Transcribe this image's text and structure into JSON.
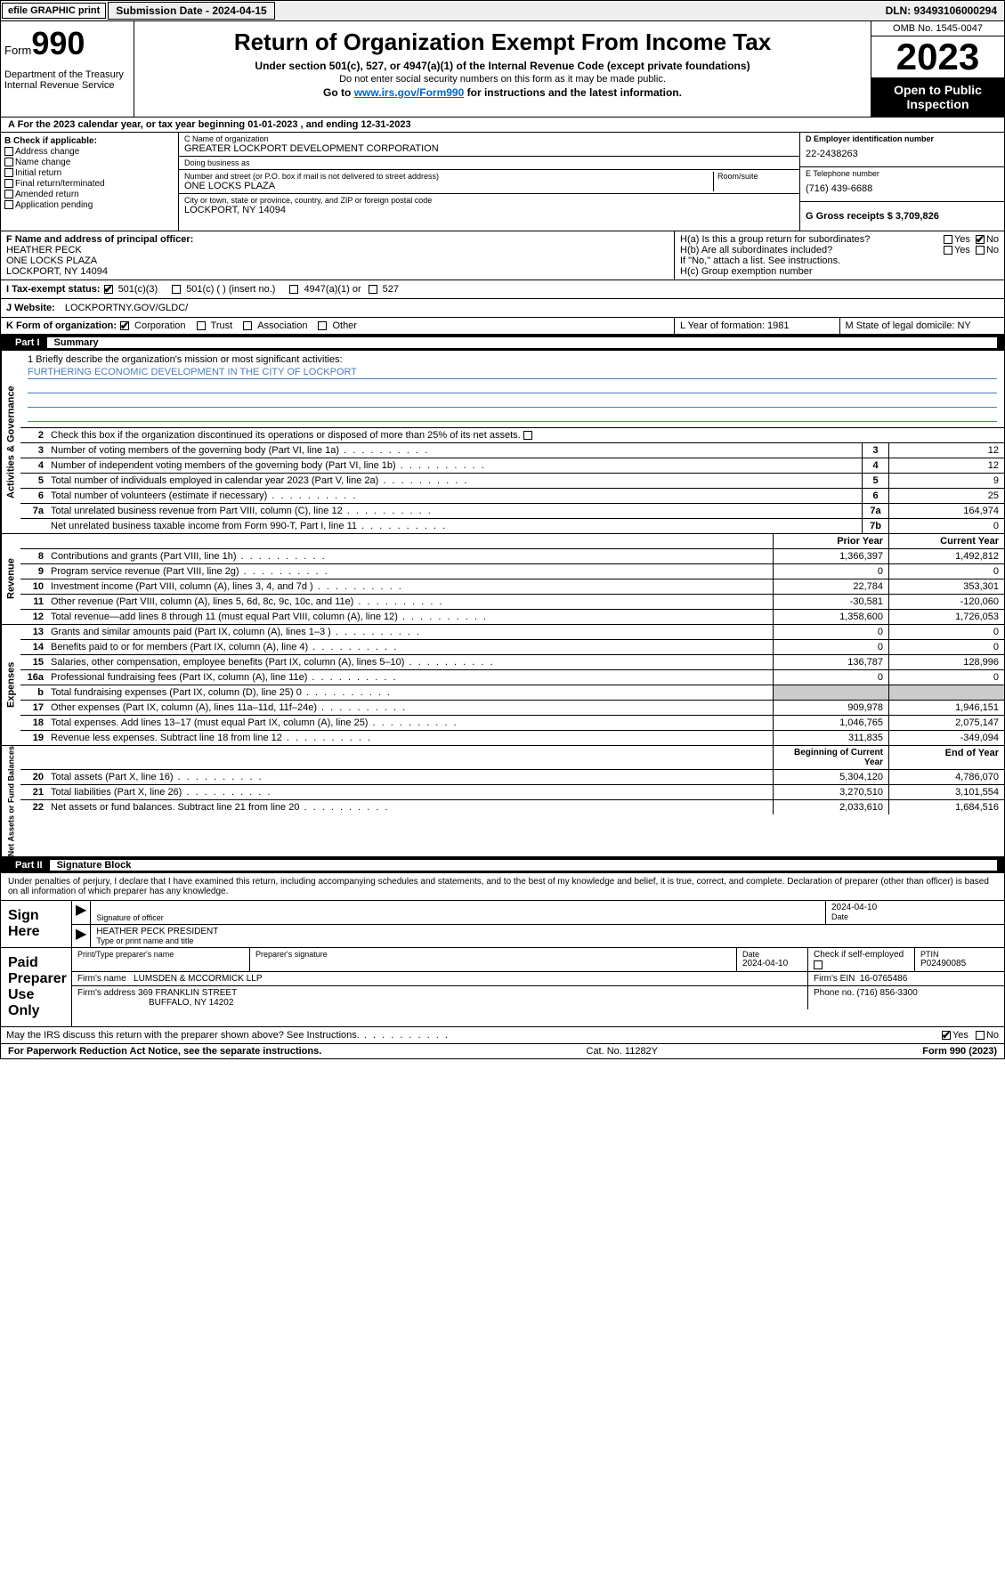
{
  "topbar": {
    "efile": "efile GRAPHIC print",
    "submission": "Submission Date - 2024-04-15",
    "dln": "DLN: 93493106000294"
  },
  "header": {
    "form_label": "Form",
    "form_num": "990",
    "dept": "Department of the Treasury Internal Revenue Service",
    "title": "Return of Organization Exempt From Income Tax",
    "sub1": "Under section 501(c), 527, or 4947(a)(1) of the Internal Revenue Code (except private foundations)",
    "sub2": "Do not enter social security numbers on this form as it may be made public.",
    "sub3_pre": "Go to ",
    "sub3_link": "www.irs.gov/Form990",
    "sub3_post": " for instructions and the latest information.",
    "omb": "OMB No. 1545-0047",
    "year": "2023",
    "open": "Open to Public Inspection"
  },
  "rowA": "A For the 2023 calendar year, or tax year beginning 01-01-2023   , and ending 12-31-2023",
  "colB": {
    "header": "B Check if applicable:",
    "opts": [
      "Address change",
      "Name change",
      "Initial return",
      "Final return/terminated",
      "Amended return",
      "Application pending"
    ]
  },
  "colC": {
    "name_lbl": "C Name of organization",
    "name": "GREATER LOCKPORT DEVELOPMENT CORPORATION",
    "dba_lbl": "Doing business as",
    "dba": "",
    "addr_lbl": "Number and street (or P.O. box if mail is not delivered to street address)",
    "room_lbl": "Room/suite",
    "addr": "ONE LOCKS PLAZA",
    "city_lbl": "City or town, state or province, country, and ZIP or foreign postal code",
    "city": "LOCKPORT, NY  14094"
  },
  "colD": {
    "ein_lbl": "D Employer identification number",
    "ein": "22-2438263",
    "tel_lbl": "E Telephone number",
    "tel": "(716) 439-6688",
    "gross_lbl": "G Gross receipts $ 3,709,826"
  },
  "rowF": {
    "lbl": "F  Name and address of principal officer:",
    "name": "HEATHER PECK",
    "addr1": "ONE LOCKS PLAZA",
    "addr2": "LOCKPORT, NY  14094"
  },
  "rowH": {
    "a": "H(a)  Is this a group return for subordinates?",
    "b": "H(b)  Are all subordinates included?",
    "b_note": "If \"No,\" attach a list. See instructions.",
    "c": "H(c)  Group exemption number",
    "yes": "Yes",
    "no": "No"
  },
  "taxI": {
    "lbl": "I  Tax-exempt status:",
    "o1": "501(c)(3)",
    "o2": "501(c) (  ) (insert no.)",
    "o3": "4947(a)(1) or",
    "o4": "527"
  },
  "rowJ": {
    "lbl": "J  Website:",
    "val": "LOCKPORTNY.GOV/GLDC/"
  },
  "rowK": {
    "lbl": "K Form of organization:",
    "opts": [
      "Corporation",
      "Trust",
      "Association",
      "Other"
    ],
    "l": "L Year of formation: 1981",
    "m": "M State of legal domicile: NY"
  },
  "part1": {
    "num": "Part I",
    "title": "Summary"
  },
  "mission": {
    "line1_lbl": "1  Briefly describe the organization's mission or most significant activities:",
    "text": "FURTHERING ECONOMIC DEVELOPMENT IN THE CITY OF LOCKPORT"
  },
  "gov": {
    "tab": "Activities & Governance",
    "l2": "Check this box       if the organization discontinued its operations or disposed of more than 25% of its net assets.",
    "rows": [
      {
        "n": "3",
        "t": "Number of voting members of the governing body (Part VI, line 1a)",
        "b": "3",
        "v": "12"
      },
      {
        "n": "4",
        "t": "Number of independent voting members of the governing body (Part VI, line 1b)",
        "b": "4",
        "v": "12"
      },
      {
        "n": "5",
        "t": "Total number of individuals employed in calendar year 2023 (Part V, line 2a)",
        "b": "5",
        "v": "9"
      },
      {
        "n": "6",
        "t": "Total number of volunteers (estimate if necessary)",
        "b": "6",
        "v": "25"
      },
      {
        "n": "7a",
        "t": "Total unrelated business revenue from Part VIII, column (C), line 12",
        "b": "7a",
        "v": "164,974"
      },
      {
        "n": "",
        "t": "Net unrelated business taxable income from Form 990-T, Part I, line 11",
        "b": "7b",
        "v": "0"
      }
    ]
  },
  "rev": {
    "tab": "Revenue",
    "hdr_prior": "Prior Year",
    "hdr_curr": "Current Year",
    "rows": [
      {
        "n": "8",
        "t": "Contributions and grants (Part VIII, line 1h)",
        "p": "1,366,397",
        "c": "1,492,812"
      },
      {
        "n": "9",
        "t": "Program service revenue (Part VIII, line 2g)",
        "p": "0",
        "c": "0"
      },
      {
        "n": "10",
        "t": "Investment income (Part VIII, column (A), lines 3, 4, and 7d )",
        "p": "22,784",
        "c": "353,301"
      },
      {
        "n": "11",
        "t": "Other revenue (Part VIII, column (A), lines 5, 6d, 8c, 9c, 10c, and 11e)",
        "p": "-30,581",
        "c": "-120,060"
      },
      {
        "n": "12",
        "t": "Total revenue—add lines 8 through 11 (must equal Part VIII, column (A), line 12)",
        "p": "1,358,600",
        "c": "1,726,053"
      }
    ]
  },
  "exp": {
    "tab": "Expenses",
    "rows": [
      {
        "n": "13",
        "t": "Grants and similar amounts paid (Part IX, column (A), lines 1–3 )",
        "p": "0",
        "c": "0"
      },
      {
        "n": "14",
        "t": "Benefits paid to or for members (Part IX, column (A), line 4)",
        "p": "0",
        "c": "0"
      },
      {
        "n": "15",
        "t": "Salaries, other compensation, employee benefits (Part IX, column (A), lines 5–10)",
        "p": "136,787",
        "c": "128,996"
      },
      {
        "n": "16a",
        "t": "Professional fundraising fees (Part IX, column (A), line 11e)",
        "p": "0",
        "c": "0"
      },
      {
        "n": "b",
        "t": "Total fundraising expenses (Part IX, column (D), line 25) 0",
        "p": "",
        "c": "",
        "shade": true
      },
      {
        "n": "17",
        "t": "Other expenses (Part IX, column (A), lines 11a–11d, 11f–24e)",
        "p": "909,978",
        "c": "1,946,151"
      },
      {
        "n": "18",
        "t": "Total expenses. Add lines 13–17 (must equal Part IX, column (A), line 25)",
        "p": "1,046,765",
        "c": "2,075,147"
      },
      {
        "n": "19",
        "t": "Revenue less expenses. Subtract line 18 from line 12",
        "p": "311,835",
        "c": "-349,094"
      }
    ]
  },
  "net": {
    "tab": "Net Assets or Fund Balances",
    "hdr_beg": "Beginning of Current Year",
    "hdr_end": "End of Year",
    "rows": [
      {
        "n": "20",
        "t": "Total assets (Part X, line 16)",
        "p": "5,304,120",
        "c": "4,786,070"
      },
      {
        "n": "21",
        "t": "Total liabilities (Part X, line 26)",
        "p": "3,270,510",
        "c": "3,101,554"
      },
      {
        "n": "22",
        "t": "Net assets or fund balances. Subtract line 21 from line 20",
        "p": "2,033,610",
        "c": "1,684,516"
      }
    ]
  },
  "part2": {
    "num": "Part II",
    "title": "Signature Block"
  },
  "penalties": "Under penalties of perjury, I declare that I have examined this return, including accompanying schedules and statements, and to the best of my knowledge and belief, it is true, correct, and complete. Declaration of preparer (other than officer) is based on all information of which preparer has any knowledge.",
  "sign": {
    "here": "Sign Here",
    "sig_lbl": "Signature of officer",
    "name": "HEATHER PECK PRESIDENT",
    "name_lbl": "Type or print name and title",
    "date_lbl": "Date",
    "date": "2024-04-10"
  },
  "paid": {
    "here": "Paid Preparer Use Only",
    "name_lbl": "Print/Type preparer's name",
    "sig_lbl": "Preparer's signature",
    "date_lbl": "Date",
    "date": "2024-04-10",
    "self_lbl": "Check       if self-employed",
    "ptin_lbl": "PTIN",
    "ptin": "P02490085",
    "firm_lbl": "Firm's name",
    "firm": "LUMSDEN & MCCORMICK LLP",
    "ein_lbl": "Firm's EIN",
    "ein": "16-0765486",
    "addr_lbl": "Firm's address",
    "addr1": "369 FRANKLIN STREET",
    "addr2": "BUFFALO, NY  14202",
    "phone_lbl": "Phone no.",
    "phone": "(716) 856-3300"
  },
  "discuss": {
    "q": "May the IRS discuss this return with the preparer shown above? See Instructions.",
    "yes": "Yes",
    "no": "No"
  },
  "footer": {
    "pra": "For Paperwork Reduction Act Notice, see the separate instructions.",
    "cat": "Cat. No. 11282Y",
    "form": "Form 990 (2023)"
  },
  "colors": {
    "link": "#0066cc",
    "uline": "#4a7ebb",
    "shade": "#cccccc",
    "black": "#000000",
    "white": "#ffffff"
  }
}
